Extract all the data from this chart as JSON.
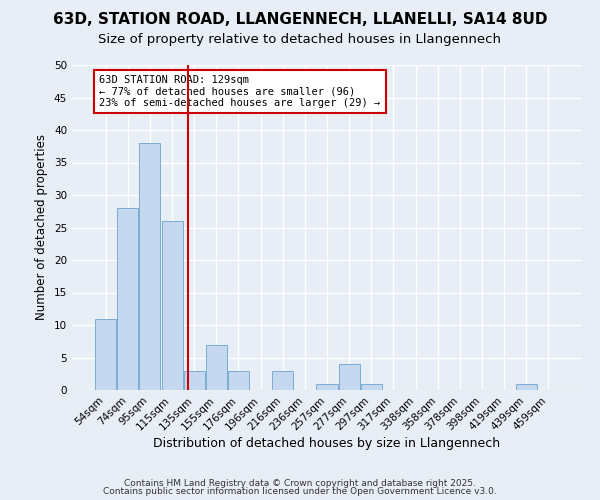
{
  "title": "63D, STATION ROAD, LLANGENNECH, LLANELLI, SA14 8UD",
  "subtitle": "Size of property relative to detached houses in Llangennech",
  "xlabel": "Distribution of detached houses by size in Llangennech",
  "ylabel": "Number of detached properties",
  "categories": [
    "54sqm",
    "74sqm",
    "95sqm",
    "115sqm",
    "135sqm",
    "155sqm",
    "176sqm",
    "196sqm",
    "216sqm",
    "236sqm",
    "257sqm",
    "277sqm",
    "297sqm",
    "317sqm",
    "338sqm",
    "358sqm",
    "378sqm",
    "398sqm",
    "419sqm",
    "439sqm",
    "459sqm"
  ],
  "values": [
    11,
    28,
    38,
    26,
    3,
    7,
    3,
    0,
    3,
    0,
    1,
    4,
    1,
    0,
    0,
    0,
    0,
    0,
    0,
    1,
    0
  ],
  "bar_color": "#c5d8ef",
  "bar_edgecolor": "#7aadd4",
  "vline_color": "#cc0000",
  "ylim": [
    0,
    50
  ],
  "yticks": [
    0,
    5,
    10,
    15,
    20,
    25,
    30,
    35,
    40,
    45,
    50
  ],
  "annotation_text": "63D STATION ROAD: 129sqm\n← 77% of detached houses are smaller (96)\n23% of semi-detached houses are larger (29) →",
  "annotation_box_facecolor": "#ffffff",
  "annotation_box_edgecolor": "#cc0000",
  "footer_line1": "Contains HM Land Registry data © Crown copyright and database right 2025.",
  "footer_line2": "Contains public sector information licensed under the Open Government Licence v3.0.",
  "background_color": "#e8eef5",
  "grid_color": "#ffffff",
  "title_fontsize": 11,
  "subtitle_fontsize": 9.5,
  "tick_fontsize": 7.5,
  "ylabel_fontsize": 8.5,
  "xlabel_fontsize": 9,
  "footer_fontsize": 6.5,
  "annotation_fontsize": 7.5
}
